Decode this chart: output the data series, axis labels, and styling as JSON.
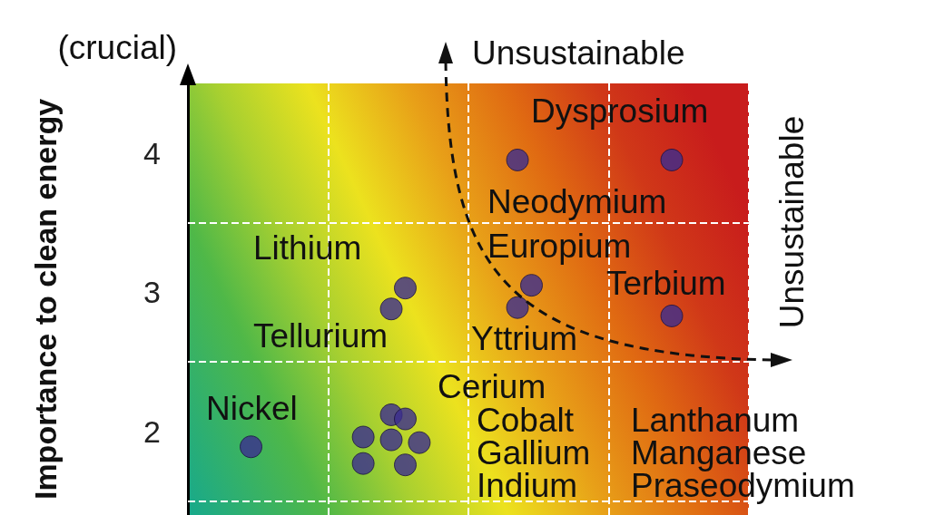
{
  "chart_data": {
    "type": "scatter",
    "ylabel": "Importance to clean energy",
    "categories": [
      null,
      null,
      null,
      null,
      null,
      null,
      null,
      null,
      null,
      null,
      null,
      null,
      null,
      null,
      null,
      null,
      null,
      null,
      null,
      null,
      null,
      null,
      null,
      null,
      null,
      null,
      null,
      null,
      null,
      null,
      null,
      null,
      null,
      null,
      null,
      null,
      null,
      null,
      null,
      null
    ],
    "ylim": [
      1.4,
      4.5
    ],
    "yticks": [
      2,
      3,
      4
    ],
    "tick_labels": "y",
    "marker": "circle",
    "grid": "x",
    "series": [
      {
        "color": "#3b2d8f",
        "values": [
          null,
          null,
          null,
          null,
          1.89,
          null,
          null,
          null,
          null,
          null,
          null,
          null,
          1.96,
          null,
          2.88,
          3.03,
          1.92,
          null,
          null,
          null,
          null,
          null,
          null,
          3.95,
          3.05,
          null,
          null,
          null,
          null,
          null,
          null,
          null,
          null,
          null,
          3.95,
          null,
          null,
          null,
          null,
          null
        ]
      },
      {
        "color": "#3b2d8f",
        "values": [
          null,
          null,
          null,
          null,
          null,
          null,
          null,
          null,
          null,
          null,
          null,
          null,
          1.77,
          null,
          2.12,
          2.09,
          null,
          null,
          null,
          null,
          null,
          null,
          null,
          2.89,
          null,
          null,
          null,
          null,
          null,
          null,
          null,
          null,
          null,
          null,
          2.83,
          null,
          null,
          null,
          null,
          null
        ]
      },
      {
        "color": "#3b2d8f",
        "values": [
          null,
          null,
          null,
          null,
          null,
          null,
          null,
          null,
          null,
          null,
          null,
          null,
          null,
          null,
          1.94,
          1.76,
          null,
          null,
          null,
          null,
          null,
          null,
          null,
          null,
          null,
          null,
          null,
          null,
          null,
          null,
          null,
          null,
          null,
          null,
          null,
          null,
          null,
          null,
          null,
          null
        ]
      }
    ],
    "ref_lines": [
      {
        "axis": "y",
        "value": 1.5,
        "color": "#ffffff",
        "line_style": "dashed"
      },
      {
        "axis": "y",
        "value": 2.5,
        "color": "#ffffff",
        "line_style": "dashed"
      },
      {
        "axis": "y",
        "value": 3.5,
        "color": "#ffffff",
        "line_style": "dashed"
      }
    ],
    "annotations": [
      "(crucial)",
      "Unsustainable",
      "Unsustainable",
      "Dysprosium",
      "Neodymium",
      "Lithium",
      "Europium",
      "Terbium",
      "Tellurium",
      "Yttrium",
      "Cerium",
      "Nickel",
      "Cobalt",
      "Gallium",
      "Indium",
      "Lanthanum",
      "Manganese",
      "Praseodymium"
    ]
  }
}
